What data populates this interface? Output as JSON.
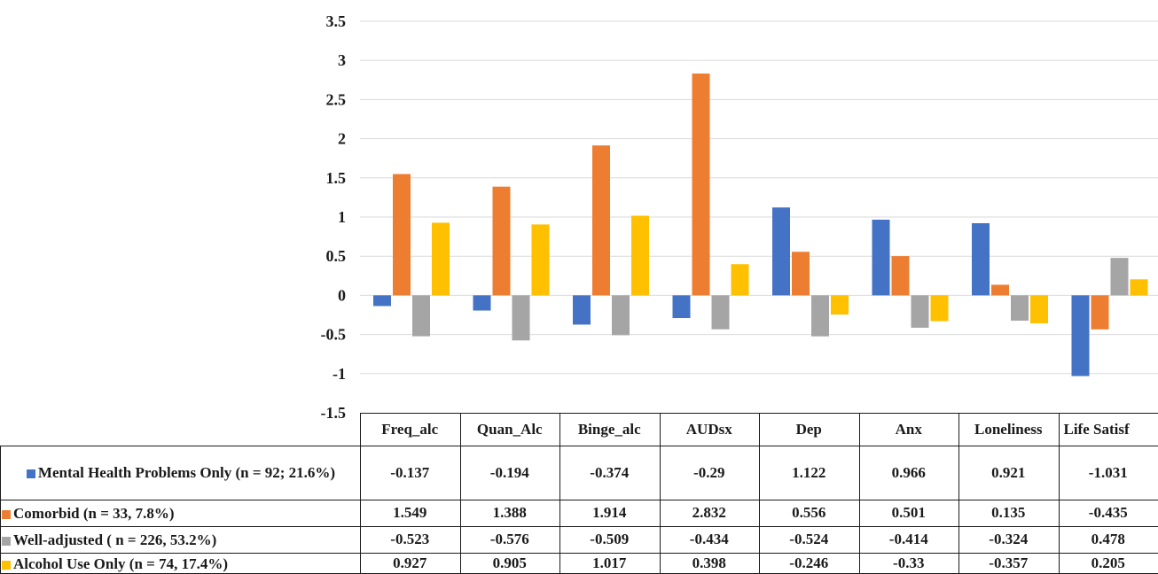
{
  "chart_data": {
    "type": "bar",
    "categories": [
      "Freq_alc",
      "Quan_Alc",
      "Binge_alc",
      "AUDsx",
      "Dep",
      "Anx",
      "Loneliness",
      "Life Satisf"
    ],
    "ylim": [
      -1.5,
      3.5
    ],
    "yticks": [
      "3.5",
      "3",
      "2.5",
      "2",
      "1.5",
      "1",
      "0.5",
      "0",
      "-0.5",
      "-1",
      "-1.5"
    ],
    "grid": true,
    "legend": "data-table-bottom",
    "series": [
      {
        "name": "Mental Health Problems Only (n = 92; 21.6%)",
        "color": "#4472C4",
        "values": [
          -0.137,
          -0.194,
          -0.374,
          -0.29,
          1.122,
          0.966,
          0.921,
          -1.031
        ],
        "labels": [
          "-0.137",
          "-0.194",
          "-0.374",
          "-0.29",
          "1.122",
          "0.966",
          "0.921",
          "-1.031"
        ]
      },
      {
        "name": "Comorbid (n = 33, 7.8%)",
        "color": "#ED7D31",
        "values": [
          1.549,
          1.388,
          1.914,
          2.832,
          0.556,
          0.501,
          0.135,
          -0.435
        ],
        "labels": [
          "1.549",
          "1.388",
          "1.914",
          "2.832",
          "0.556",
          "0.501",
          "0.135",
          "-0.435"
        ]
      },
      {
        "name": "Well-adjusted  ( n = 226, 53.2%)",
        "color": "#A5A5A5",
        "values": [
          -0.523,
          -0.576,
          -0.509,
          -0.434,
          -0.524,
          -0.414,
          -0.324,
          0.478
        ],
        "labels": [
          "-0.523",
          "-0.576",
          "-0.509",
          "-0.434",
          "-0.524",
          "-0.414",
          "-0.324",
          "0.478"
        ]
      },
      {
        "name": "Alcohol Use Only (n = 74, 17.4%)",
        "color": "#FFC000",
        "values": [
          0.927,
          0.905,
          1.017,
          0.398,
          -0.246,
          -0.33,
          -0.357,
          0.205
        ],
        "labels": [
          "0.927",
          "0.905",
          "1.017",
          "0.398",
          "-0.246",
          "-0.33",
          "-0.357",
          "0.205"
        ]
      }
    ]
  }
}
